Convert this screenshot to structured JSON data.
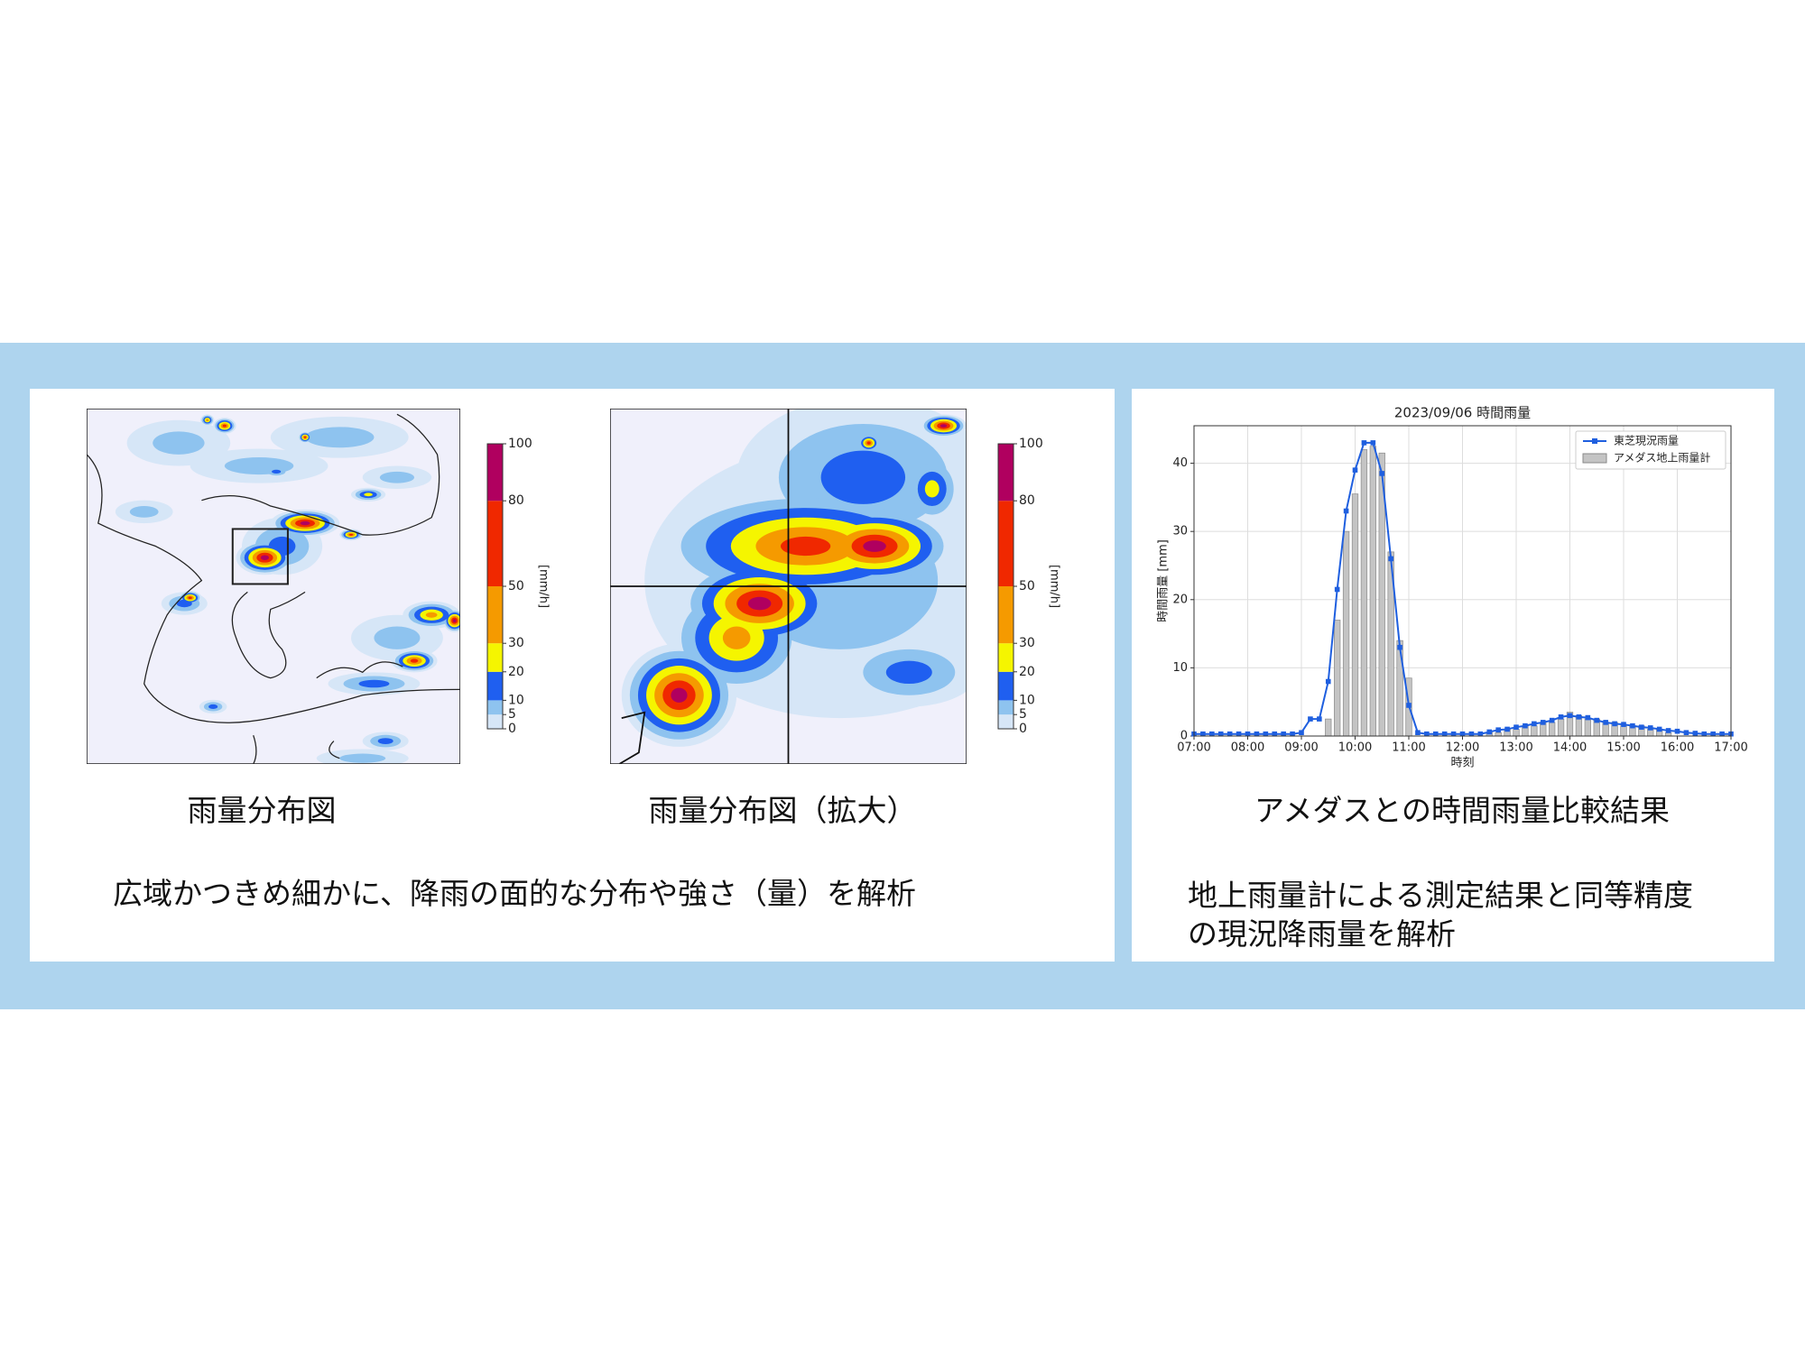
{
  "maps": [
    {
      "caption": "雨量分布図"
    },
    {
      "caption": "雨量分布図（拡大）"
    }
  ],
  "colorbar": {
    "label": "[mm/h]",
    "lim": [
      0,
      100
    ],
    "ticks": [
      0,
      5,
      10,
      20,
      30,
      50,
      80,
      100
    ],
    "colors": [
      "#d6e6f7",
      "#8ec3ef",
      "#1f5ff0",
      "#f5f500",
      "#f59a00",
      "#f02800",
      "#b0005f"
    ]
  },
  "map_summary": "広域かつきめ細かに、降雨の面的な分布や強さ（量）を解析",
  "comparison": {
    "caption": "アメダスとの時間雨量比較結果",
    "description": [
      "地上雨量計による測定結果と同等精度",
      "の現況降雨量を解析"
    ]
  },
  "chart_data": {
    "type": "line-bar",
    "title": "2023/09/06  時間雨量",
    "xlabel": "時刻",
    "ylabel": "時間雨量 [mm]",
    "x": [
      "07:00",
      "07:10",
      "07:20",
      "07:30",
      "07:40",
      "07:50",
      "08:00",
      "08:10",
      "08:20",
      "08:30",
      "08:40",
      "08:50",
      "09:00",
      "09:10",
      "09:20",
      "09:30",
      "09:40",
      "09:50",
      "10:00",
      "10:10",
      "10:20",
      "10:30",
      "10:40",
      "10:50",
      "11:00",
      "11:10",
      "11:20",
      "11:30",
      "11:40",
      "11:50",
      "12:00",
      "12:10",
      "12:20",
      "12:30",
      "12:40",
      "12:50",
      "13:00",
      "13:10",
      "13:20",
      "13:30",
      "13:40",
      "13:50",
      "14:00",
      "14:10",
      "14:20",
      "14:30",
      "14:40",
      "14:50",
      "15:00",
      "15:10",
      "15:20",
      "15:30",
      "15:40",
      "15:50",
      "16:00",
      "16:10",
      "16:20",
      "16:30",
      "16:40",
      "16:50",
      "17:00"
    ],
    "series": [
      {
        "name": "東芝現況雨量",
        "kind": "line",
        "color": "#1f5fdf",
        "values": [
          0.3,
          0.3,
          0.3,
          0.3,
          0.3,
          0.3,
          0.3,
          0.3,
          0.3,
          0.3,
          0.3,
          0.3,
          0.5,
          2.5,
          2.5,
          8,
          21.5,
          33,
          39,
          43,
          43,
          38.5,
          26,
          13,
          4.5,
          0.5,
          0.3,
          0.3,
          0.3,
          0.3,
          0.3,
          0.3,
          0.3,
          0.6,
          0.9,
          1,
          1.3,
          1.5,
          1.8,
          2,
          2.3,
          2.8,
          3,
          2.8,
          2.7,
          2.3,
          2,
          1.8,
          1.7,
          1.5,
          1.3,
          1.2,
          1,
          0.8,
          0.7,
          0.5,
          0.4,
          0.3,
          0.3,
          0.3,
          0.3
        ]
      },
      {
        "name": "アメダス地上雨量計",
        "kind": "bar",
        "color": "#c4c4c4",
        "values": [
          0,
          0,
          0,
          0,
          0,
          0,
          0,
          0,
          0,
          0,
          0,
          0,
          0,
          0,
          0,
          2.5,
          17,
          30,
          35.5,
          42,
          42.5,
          41.5,
          27,
          14,
          8.5,
          0,
          0,
          0,
          0,
          0,
          0,
          0,
          0,
          0.5,
          0.5,
          1,
          1,
          1.5,
          1.5,
          2,
          2,
          2.5,
          3.5,
          3,
          2.5,
          2.5,
          2,
          2,
          1.5,
          1.5,
          1.5,
          1,
          1,
          0.5,
          0,
          0,
          0,
          0,
          0,
          0,
          0
        ]
      }
    ],
    "xlim": [
      "07:00",
      "17:00"
    ],
    "xticks": [
      "07:00",
      "08:00",
      "09:00",
      "10:00",
      "11:00",
      "12:00",
      "13:00",
      "14:00",
      "15:00",
      "16:00",
      "17:00"
    ],
    "ylim": [
      0,
      45.5
    ],
    "yticks": [
      0,
      10,
      20,
      30,
      40
    ],
    "grid": true,
    "legend": "upper right"
  }
}
